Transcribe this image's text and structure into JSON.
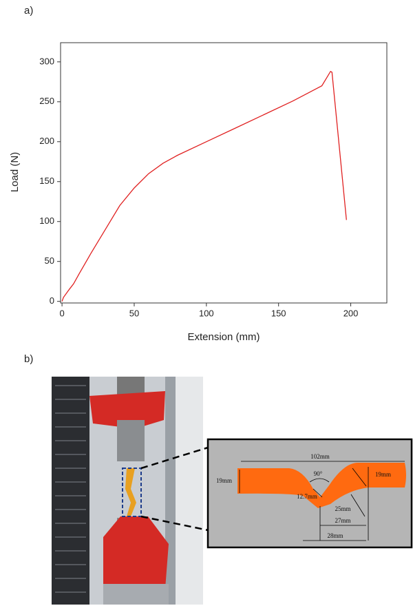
{
  "panels": {
    "a": "a)",
    "b": "b)"
  },
  "chart_data": {
    "type": "line",
    "xlabel": "Extension (mm)",
    "ylabel": "Load (N)",
    "x": [
      0,
      1,
      5,
      8,
      12,
      20,
      30,
      40,
      50,
      60,
      70,
      80,
      100,
      120,
      140,
      160,
      180,
      186,
      187,
      197
    ],
    "values": [
      0,
      5,
      15,
      22,
      35,
      60,
      90,
      120,
      142,
      160,
      173,
      183,
      200,
      217,
      234,
      251,
      270,
      288,
      287,
      102
    ],
    "color": "#e02020",
    "xlim": [
      -1,
      225
    ],
    "ylim": [
      -2,
      324
    ],
    "xticks": [
      0,
      50,
      100,
      150,
      200
    ],
    "yticks": [
      0,
      50,
      100,
      150,
      200,
      250,
      300
    ]
  },
  "specimen_labels": [
    "102mm",
    "19mm",
    "90°",
    "19mm",
    "12.7mm",
    "25mm",
    "27mm",
    "28mm"
  ]
}
